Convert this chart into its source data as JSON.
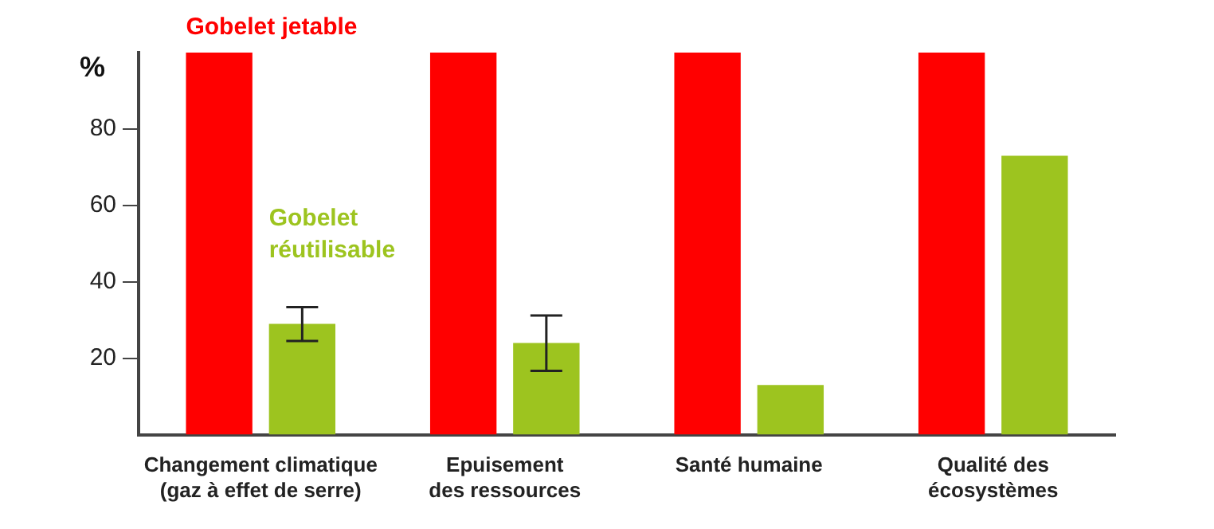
{
  "chart_data": {
    "type": "bar",
    "ylabel": "%",
    "categories": [
      "Changement climatique\n(gaz à effet de serre)",
      "Epuisement\ndes ressources",
      "Santé humaine",
      "Qualité des\nécosystèmes"
    ],
    "series": [
      {
        "name": "Gobelet jetable",
        "color": "#ff0000",
        "values": [
          100,
          100,
          100,
          100
        ]
      },
      {
        "name": "Gobelet réutilisable",
        "color": "#9dc41f",
        "values": [
          29,
          24,
          13,
          73
        ],
        "errors": [
          [
            24.5,
            33.4
          ],
          [
            16.7,
            31.2
          ],
          null,
          null
        ]
      }
    ],
    "ylim": [
      0,
      100
    ],
    "yticks": [
      20,
      40,
      60,
      80
    ],
    "grid": false
  }
}
